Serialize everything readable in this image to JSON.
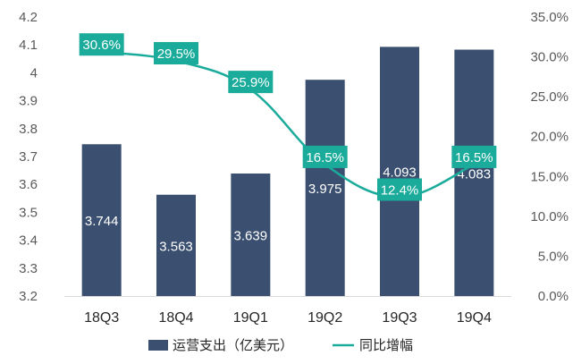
{
  "chart_data": {
    "type": "bar",
    "categories": [
      "18Q3",
      "18Q4",
      "19Q1",
      "19Q2",
      "19Q3",
      "19Q4"
    ],
    "series": [
      {
        "name": "运营支出（亿美元）",
        "type": "bar",
        "axis": "left",
        "values": [
          3.744,
          3.563,
          3.639,
          3.975,
          4.093,
          4.083
        ],
        "labels": [
          "3.744",
          "3.563",
          "3.639",
          "3.975",
          "4.093",
          "4.083"
        ],
        "color": "#3b5070"
      },
      {
        "name": "同比增幅",
        "type": "line",
        "axis": "right",
        "values": [
          30.6,
          29.5,
          25.9,
          16.5,
          12.4,
          16.5
        ],
        "labels": [
          "30.6%",
          "29.5%",
          "25.9%",
          "16.5%",
          "12.4%",
          "16.5%"
        ],
        "color": "#1aab9b"
      }
    ],
    "y_left": {
      "min": 3.2,
      "max": 4.2,
      "ticks": [
        3.2,
        3.3,
        3.4,
        3.5,
        3.6,
        3.7,
        3.8,
        3.9,
        4.0,
        4.1,
        4.2
      ],
      "tick_labels": [
        "3.2",
        "3.3",
        "3.4",
        "3.5",
        "3.6",
        "3.7",
        "3.8",
        "3.9",
        "4",
        "4.1",
        "4.2"
      ]
    },
    "y_right": {
      "min": 0,
      "max": 35,
      "ticks": [
        0,
        5,
        10,
        15,
        20,
        25,
        30,
        35
      ],
      "tick_labels": [
        "0.0%",
        "5.0%",
        "10.0%",
        "15.0%",
        "20.0%",
        "25.0%",
        "30.0%",
        "35.0%"
      ]
    },
    "legend": {
      "position": "bottom"
    },
    "grid": false
  }
}
